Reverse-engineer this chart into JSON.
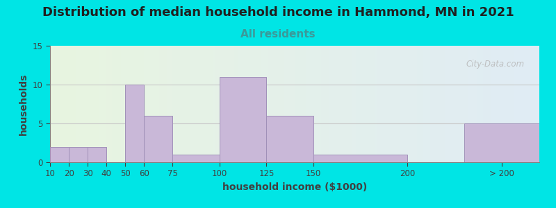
{
  "title": "Distribution of median household income in Hammond, MN in 2021",
  "subtitle": "All residents",
  "xlabel": "household income ($1000)",
  "ylabel": "households",
  "tick_labels": [
    "10",
    "20",
    "30",
    "40",
    "50",
    "60",
    "75",
    "100",
    "125",
    "150",
    "200",
    "> 200"
  ],
  "tick_positions": [
    10,
    20,
    30,
    40,
    50,
    60,
    75,
    100,
    125,
    150,
    200,
    250
  ],
  "bin_edges": [
    10,
    20,
    30,
    40,
    50,
    60,
    75,
    100,
    125,
    150,
    200,
    230,
    270
  ],
  "bar_values": [
    2,
    2,
    2,
    0,
    10,
    6,
    1,
    11,
    6,
    1,
    0,
    5
  ],
  "bar_color": "#c9b8d8",
  "bar_edge_color": "#a090b8",
  "ylim": [
    0,
    15
  ],
  "yticks": [
    0,
    5,
    10,
    15
  ],
  "xlim": [
    10,
    270
  ],
  "background_color": "#00e5e5",
  "title_fontsize": 13,
  "subtitle_fontsize": 11,
  "subtitle_color": "#3a9a9a",
  "axis_label_fontsize": 10,
  "watermark": "City-Data.com",
  "grid_color": "#c8c8c8",
  "plot_bg_left": "#e8f5e0",
  "plot_bg_right": "#e0ecf5"
}
